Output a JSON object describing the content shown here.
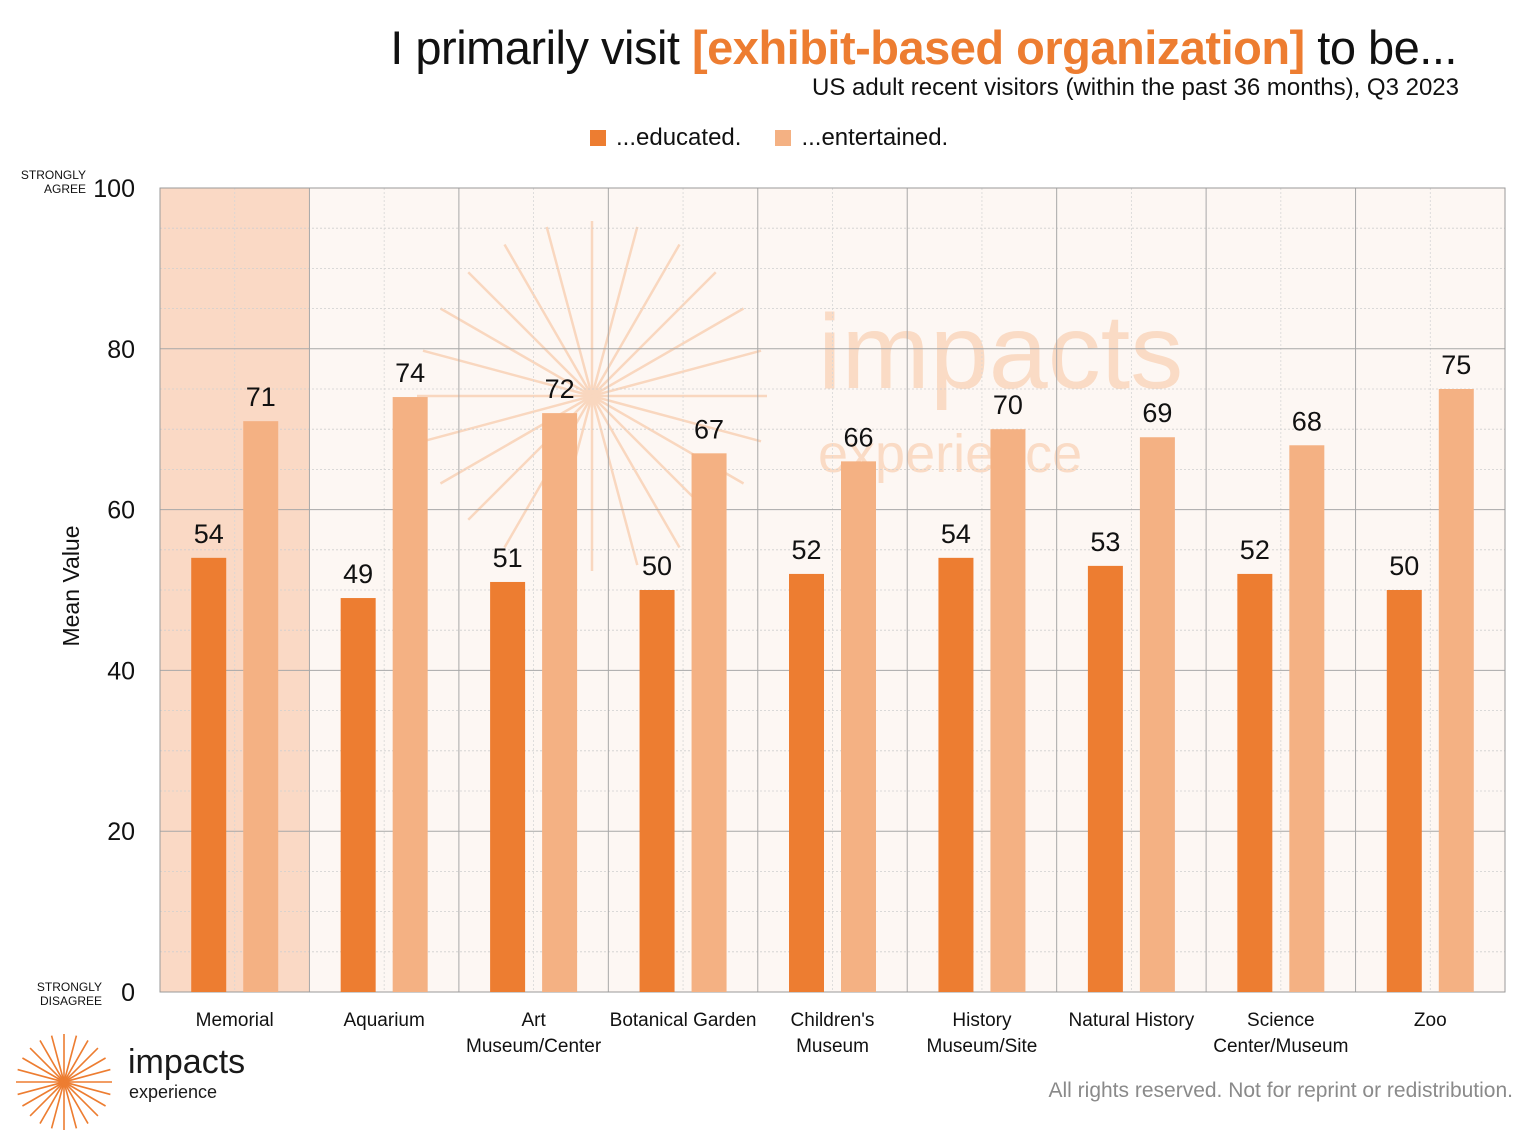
{
  "title": {
    "prefix": "I primarily visit ",
    "highlight": "[exhibit-based organization]",
    "suffix": " to be..."
  },
  "subtitle": "US adult recent visitors (within the past 36 months), Q3 2023",
  "colors": {
    "educated": "#ED7D31",
    "entertained": "#F4B183",
    "highlight_text": "#ED7D31",
    "plot_background": "#FDF7F3",
    "highlight_column": "#FAD9C5",
    "watermark": "#F9D2B6"
  },
  "watermark": {
    "name": "impacts",
    "sub": "experience"
  },
  "brand": {
    "name": "impacts",
    "sub": "experience",
    "icon": "starburst-icon"
  },
  "copyright": "All rights reserved. Not for reprint or redistribution.",
  "chart_data": {
    "type": "bar",
    "ylabel": "Mean Value",
    "ylim": [
      0,
      100
    ],
    "yticks": [
      0,
      20,
      40,
      60,
      80,
      100
    ],
    "scale_labels": {
      "top": [
        "STRONGLY",
        "AGREE"
      ],
      "bottom": [
        "STRONGLY",
        "DISAGREE"
      ]
    },
    "categories": [
      [
        "Memorial"
      ],
      [
        "Aquarium"
      ],
      [
        "Art",
        "Museum/Center"
      ],
      [
        "Botanical Garden"
      ],
      [
        "Children's",
        "Museum"
      ],
      [
        "History",
        "Museum/Site"
      ],
      [
        "Natural History"
      ],
      [
        "Science",
        "Center/Museum"
      ],
      [
        "Zoo"
      ]
    ],
    "highlighted_category": "Memorial",
    "series": [
      {
        "name": "...educated.",
        "values": [
          54,
          49,
          51,
          50,
          52,
          54,
          53,
          52,
          50
        ]
      },
      {
        "name": "...entertained.",
        "values": [
          71,
          74,
          72,
          67,
          66,
          70,
          69,
          68,
          75
        ]
      }
    ],
    "grid": true,
    "legend": "top"
  }
}
